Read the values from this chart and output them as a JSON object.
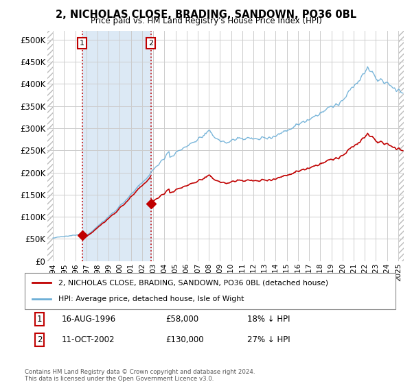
{
  "title": "2, NICHOLAS CLOSE, BRADING, SANDOWN, PO36 0BL",
  "subtitle": "Price paid vs. HM Land Registry's House Price Index (HPI)",
  "legend_line1": "2, NICHOLAS CLOSE, BRADING, SANDOWN, PO36 0BL (detached house)",
  "legend_line2": "HPI: Average price, detached house, Isle of Wight",
  "footnote": "Contains HM Land Registry data © Crown copyright and database right 2024.\nThis data is licensed under the Open Government Licence v3.0.",
  "transaction1_date": "16-AUG-1996",
  "transaction1_price": 58000,
  "transaction1_label": "18% ↓ HPI",
  "transaction1_x": 1996.62,
  "transaction2_date": "11-OCT-2002",
  "transaction2_price": 130000,
  "transaction2_label": "27% ↓ HPI",
  "transaction2_x": 2002.78,
  "hpi_color": "#6baed6",
  "price_color": "#c00000",
  "hatch_color": "#bbbbbb",
  "grid_color": "#cccccc",
  "span_color": "#dce9f5",
  "xlim_left": 1993.5,
  "xlim_right": 2025.5,
  "ylim_bottom": 0,
  "ylim_top": 520000
}
